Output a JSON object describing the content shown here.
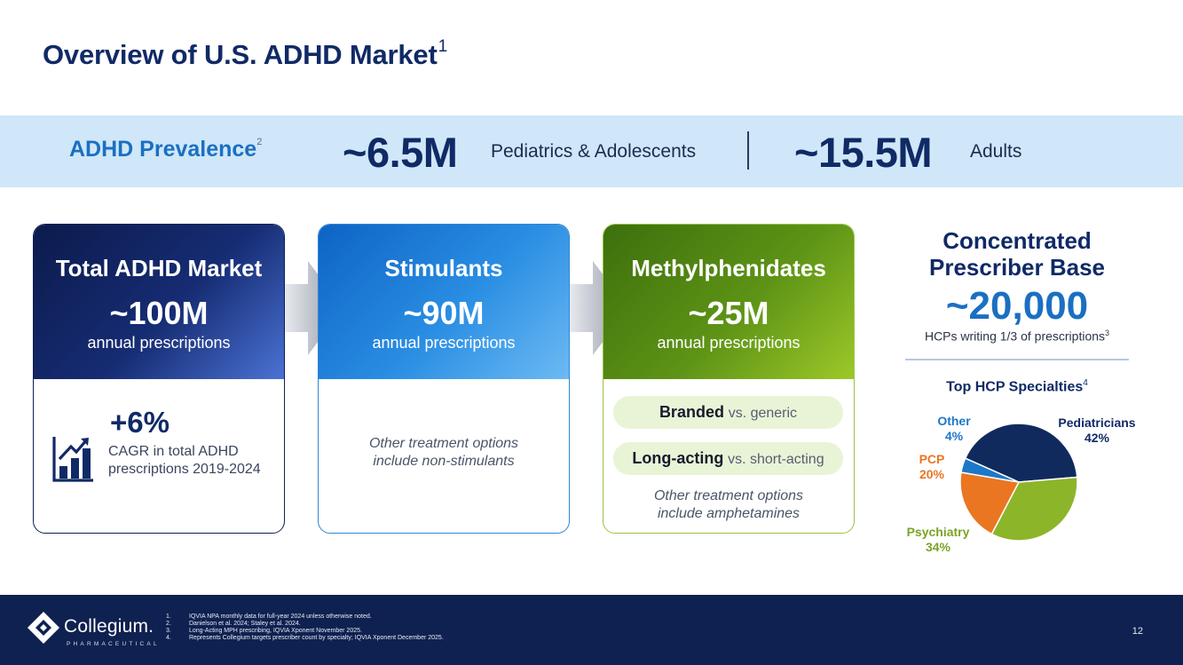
{
  "title": {
    "text": "Overview of U.S. ADHD Market",
    "footnote": "1"
  },
  "prevalence": {
    "label": "ADHD Prevalence",
    "footnote": "2",
    "pediatric_value": "~6.5M",
    "pediatric_label": "Pediatrics & Adolescents",
    "adult_value": "~15.5M",
    "adult_label": "Adults"
  },
  "cards": [
    {
      "title": "Total ADHD Market",
      "value": "~100M",
      "sub": "annual prescriptions"
    },
    {
      "title": "Stimulants",
      "value": "~90M",
      "sub": "annual prescriptions"
    },
    {
      "title": "Methylphenidates",
      "value": "~25M",
      "sub": "annual prescriptions"
    }
  ],
  "growth": {
    "value": "+6%",
    "line1": "CAGR in total ADHD",
    "line2": "prescriptions 2019-2024",
    "icon": "growth-chart-icon"
  },
  "stimulants_note": {
    "line1": "Other treatment options",
    "line2": "include non-stimulants"
  },
  "methylphenidates": {
    "pills": [
      {
        "bold": "Branded",
        "rest": "vs. generic"
      },
      {
        "bold": "Long-acting",
        "rest": "vs. short-acting"
      }
    ],
    "note": {
      "line1": "Other treatment options",
      "line2": "include amphetamines"
    }
  },
  "prescriber": {
    "title_line1": "Concentrated",
    "title_line2": "Prescriber Base",
    "value": "~20,000",
    "sub": "HCPs writing 1/3 of prescriptions",
    "sub_footnote": "3",
    "specialties_title": "Top HCP Specialties",
    "specialties_footnote": "4"
  },
  "chart_data": {
    "type": "pie",
    "title": "Top HCP Specialties",
    "slices": [
      {
        "label": "Pediatricians",
        "value": 42,
        "display": "42%",
        "color": "#112a5e"
      },
      {
        "label": "Psychiatry",
        "value": 34,
        "display": "34%",
        "color": "#8db52a"
      },
      {
        "label": "PCP",
        "value": 20,
        "display": "20%",
        "color": "#ea7622"
      },
      {
        "label": "Other",
        "value": 4,
        "display": "4%",
        "color": "#1e78c8"
      }
    ]
  },
  "footer": {
    "logo_name": "Collegium.",
    "logo_sub": "PHARMACEUTICAL",
    "notes": [
      {
        "num": "1.",
        "text": "IQVIA NPA monthly data for full-year 2024 unless otherwise noted."
      },
      {
        "num": "2.",
        "text": "Danielson et al. 2024; Staley et al. 2024."
      },
      {
        "num": "3.",
        "text": "Long-Acting MPH prescribing, IQVIA Xponent November 2025."
      },
      {
        "num": "4.",
        "text": "Represents Collegium targets prescriber count by specialty; IQVIA Xponent December 2025."
      }
    ],
    "page": "12"
  }
}
